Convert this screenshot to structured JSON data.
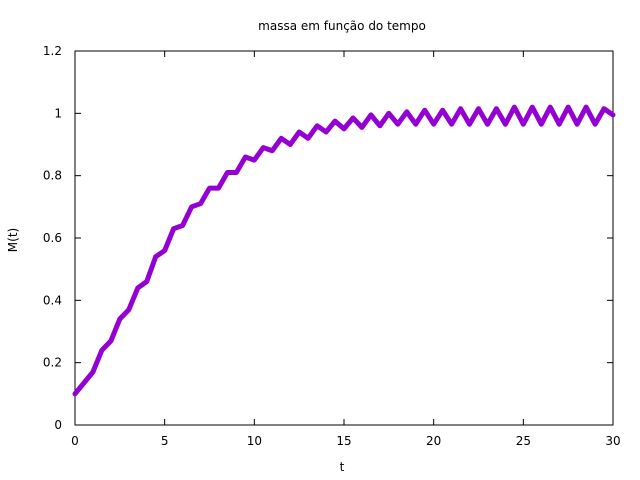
{
  "chart_data": {
    "type": "line",
    "title": "massa em função do tempo",
    "xlabel": "t",
    "ylabel": "M(t)",
    "xlim": [
      0,
      30
    ],
    "ylim": [
      0,
      1.2
    ],
    "x_ticks": [
      "0",
      "5",
      "10",
      "15",
      "20",
      "25",
      "30"
    ],
    "y_ticks": [
      "0",
      "0.2",
      "0.4",
      "0.6",
      "0.8",
      "1",
      "1.2"
    ],
    "grid": false,
    "legend": "none",
    "series": [
      {
        "color": "#9400d3",
        "x": [
          0,
          0.5,
          1,
          1.5,
          2,
          2.5,
          3,
          3.5,
          4,
          4.5,
          5,
          5.5,
          6,
          6.5,
          7,
          7.5,
          8,
          8.5,
          9,
          9.5,
          10,
          10.5,
          11,
          11.5,
          12,
          12.5,
          13,
          13.5,
          14,
          14.5,
          15,
          15.5,
          16,
          16.5,
          17,
          17.5,
          18,
          18.5,
          19,
          19.5,
          20,
          20.5,
          21,
          21.5,
          22,
          22.5,
          23,
          23.5,
          24,
          24.5,
          25,
          25.5,
          26,
          26.5,
          27,
          27.5,
          28,
          28.5,
          29,
          29.5,
          30
        ],
        "y": [
          0.1,
          0.135,
          0.17,
          0.24,
          0.27,
          0.34,
          0.37,
          0.44,
          0.46,
          0.54,
          0.56,
          0.63,
          0.64,
          0.7,
          0.71,
          0.76,
          0.76,
          0.81,
          0.81,
          0.86,
          0.85,
          0.89,
          0.88,
          0.92,
          0.9,
          0.94,
          0.92,
          0.96,
          0.94,
          0.975,
          0.95,
          0.985,
          0.955,
          0.995,
          0.96,
          1.0,
          0.965,
          1.005,
          0.965,
          1.01,
          0.965,
          1.01,
          0.965,
          1.015,
          0.965,
          1.015,
          0.965,
          1.015,
          0.965,
          1.02,
          0.965,
          1.02,
          0.965,
          1.02,
          0.965,
          1.02,
          0.965,
          1.02,
          0.965,
          1.015,
          0.995
        ]
      }
    ]
  }
}
